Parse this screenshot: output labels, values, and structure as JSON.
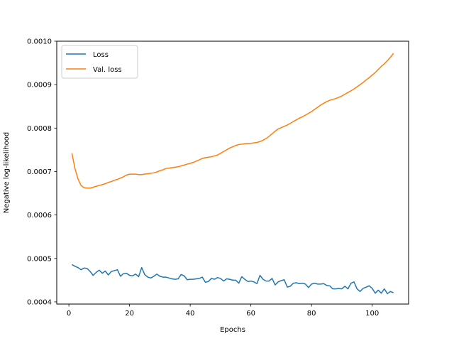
{
  "chart_data": {
    "type": "line",
    "title": "",
    "xlabel": "Epochs",
    "ylabel": "Negative log-likelihood",
    "xlim": [
      -4,
      112
    ],
    "ylim": [
      0.000395,
      0.001
    ],
    "xticks": [
      0,
      20,
      40,
      60,
      80,
      100
    ],
    "xtick_labels": [
      "0",
      "20",
      "40",
      "60",
      "80",
      "100"
    ],
    "yticks": [
      0.0004,
      0.0005,
      0.0006,
      0.0007,
      0.0008,
      0.0009,
      0.001
    ],
    "ytick_labels": [
      "0.0004",
      "0.0005",
      "0.0006",
      "0.0007",
      "0.0008",
      "0.0009",
      "0.0010"
    ],
    "grid": false,
    "legend": {
      "location": "upper-left"
    },
    "series": [
      {
        "name": "Loss",
        "color": "#1f77b4",
        "x": [
          1,
          2,
          3,
          4,
          5,
          6,
          7,
          8,
          9,
          10,
          11,
          12,
          13,
          14,
          15,
          16,
          17,
          18,
          19,
          20,
          21,
          22,
          23,
          24,
          25,
          26,
          27,
          28,
          29,
          30,
          31,
          32,
          33,
          34,
          35,
          36,
          37,
          38,
          39,
          40,
          41,
          42,
          43,
          44,
          45,
          46,
          47,
          48,
          49,
          50,
          51,
          52,
          53,
          54,
          55,
          56,
          57,
          58,
          59,
          60,
          61,
          62,
          63,
          64,
          65,
          66,
          67,
          68,
          69,
          70,
          71,
          72,
          73,
          74,
          75,
          76,
          77,
          78,
          79,
          80,
          81,
          82,
          83,
          84,
          85,
          86,
          87,
          88,
          89,
          90,
          91,
          92,
          93,
          94,
          95,
          96,
          97,
          98,
          99,
          100,
          101,
          102,
          103,
          104,
          105,
          106,
          107
        ],
        "y": [
          0.000486,
          0.000482,
          0.000479,
          0.000474,
          0.000478,
          0.000477,
          0.00047,
          0.000461,
          0.000468,
          0.000473,
          0.000466,
          0.000471,
          0.000462,
          0.00047,
          0.000472,
          0.000474,
          0.000459,
          0.000465,
          0.000466,
          0.000461,
          0.00046,
          0.000464,
          0.000458,
          0.000479,
          0.000463,
          0.000457,
          0.000455,
          0.000459,
          0.000464,
          0.000459,
          0.000457,
          0.000457,
          0.000455,
          0.000453,
          0.000452,
          0.000453,
          0.000463,
          0.00046,
          0.000451,
          0.000452,
          0.000452,
          0.000453,
          0.000454,
          0.000457,
          0.000445,
          0.000447,
          0.000454,
          0.000452,
          0.000456,
          0.000454,
          0.000448,
          0.000453,
          0.000452,
          0.00045,
          0.00045,
          0.000443,
          0.000458,
          0.000452,
          0.000447,
          0.000448,
          0.000446,
          0.000442,
          0.000461,
          0.000452,
          0.000448,
          0.000448,
          0.000454,
          0.000439,
          0.000446,
          0.000449,
          0.000451,
          0.000434,
          0.000436,
          0.000443,
          0.000444,
          0.000442,
          0.000443,
          0.000441,
          0.000433,
          0.000441,
          0.000443,
          0.000441,
          0.000441,
          0.000442,
          0.000438,
          0.000437,
          0.00043,
          0.00043,
          0.000431,
          0.00043,
          0.000436,
          0.00043,
          0.000443,
          0.000446,
          0.00043,
          0.000424,
          0.000431,
          0.000434,
          0.000437,
          0.000431,
          0.00042,
          0.000427,
          0.00042,
          0.00043,
          0.000419,
          0.000424,
          0.000421
        ]
      },
      {
        "name": "Val. loss",
        "color": "#ff7f0e",
        "x": [
          1,
          2,
          3,
          4,
          5,
          6,
          7,
          8,
          9,
          10,
          11,
          12,
          13,
          14,
          15,
          16,
          17,
          18,
          19,
          20,
          21,
          22,
          23,
          24,
          25,
          26,
          27,
          28,
          29,
          30,
          31,
          32,
          33,
          34,
          35,
          36,
          37,
          38,
          39,
          40,
          41,
          42,
          43,
          44,
          45,
          46,
          47,
          48,
          49,
          50,
          51,
          52,
          53,
          54,
          55,
          56,
          57,
          58,
          59,
          60,
          61,
          62,
          63,
          64,
          65,
          66,
          67,
          68,
          69,
          70,
          71,
          72,
          73,
          74,
          75,
          76,
          77,
          78,
          79,
          80,
          81,
          82,
          83,
          84,
          85,
          86,
          87,
          88,
          89,
          90,
          91,
          92,
          93,
          94,
          95,
          96,
          97,
          98,
          99,
          100,
          101,
          102,
          103,
          104,
          105,
          106,
          107
        ],
        "y": [
          0.000742,
          0.000707,
          0.000683,
          0.000668,
          0.000663,
          0.000662,
          0.000662,
          0.000664,
          0.000666,
          0.000668,
          0.00067,
          0.000672,
          0.000675,
          0.000677,
          0.00068,
          0.000682,
          0.000685,
          0.000688,
          0.000692,
          0.000694,
          0.000694,
          0.000694,
          0.000693,
          0.000693,
          0.000694,
          0.000695,
          0.000696,
          0.000697,
          0.000699,
          0.000702,
          0.000704,
          0.000707,
          0.000708,
          0.000709,
          0.00071,
          0.000711,
          0.000713,
          0.000715,
          0.000717,
          0.000719,
          0.000721,
          0.000724,
          0.000727,
          0.00073,
          0.000732,
          0.000733,
          0.000734,
          0.000736,
          0.000738,
          0.000742,
          0.000746,
          0.00075,
          0.000754,
          0.000757,
          0.00076,
          0.000762,
          0.000763,
          0.000764,
          0.000765,
          0.000765,
          0.000766,
          0.000767,
          0.000769,
          0.000772,
          0.000776,
          0.000781,
          0.000787,
          0.000793,
          0.000798,
          0.000801,
          0.000804,
          0.000807,
          0.000811,
          0.000815,
          0.000819,
          0.000823,
          0.000826,
          0.00083,
          0.000834,
          0.000838,
          0.000843,
          0.000848,
          0.000853,
          0.000857,
          0.000861,
          0.000864,
          0.000866,
          0.000868,
          0.000871,
          0.000874,
          0.000878,
          0.000882,
          0.000886,
          0.00089,
          0.000895,
          0.0009,
          0.000905,
          0.000911,
          0.000916,
          0.000922,
          0.000928,
          0.000935,
          0.000942,
          0.000948,
          0.000955,
          0.000963,
          0.000972
        ]
      }
    ]
  }
}
